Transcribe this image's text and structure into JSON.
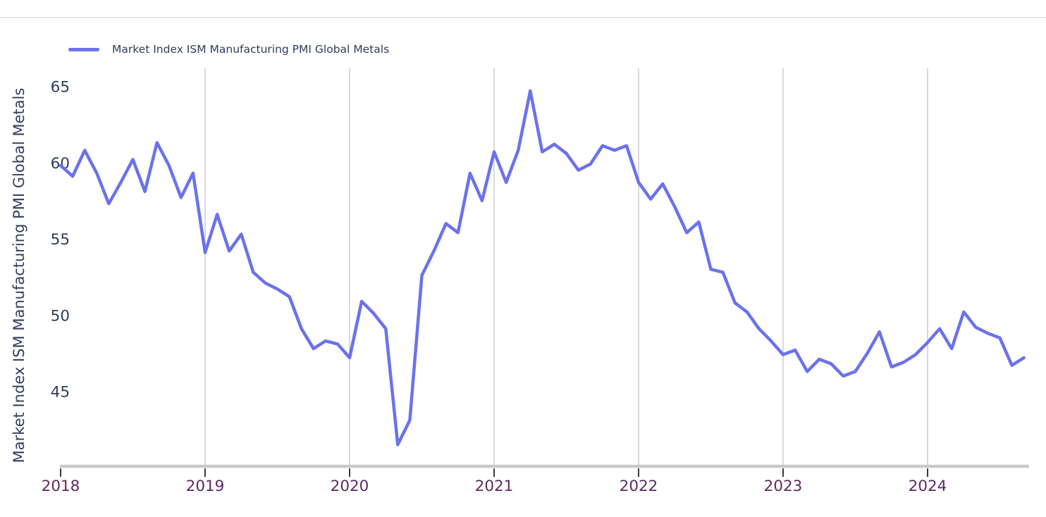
{
  "legend": {
    "label": "Market Index ISM Manufacturing PMI Global Metals",
    "swatch_color": "#6b72ec"
  },
  "chart_data": {
    "type": "line",
    "title": "",
    "xlabel": "",
    "ylabel": "Market Index ISM Manufacturing PMI Global Metals",
    "legend_position": "top-left",
    "grid": "vertical-year-gridlines-only",
    "x_ticks": [
      "2018",
      "2019",
      "2020",
      "2021",
      "2022",
      "2023",
      "2024"
    ],
    "y_ticks": [
      45,
      50,
      55,
      60,
      65
    ],
    "ylim": [
      40,
      66.5
    ],
    "series": [
      {
        "name": "Market Index ISM Manufacturing PMI Global Metals",
        "color": "#6b72ec",
        "x": [
          "2017-12",
          "2018-01",
          "2018-02",
          "2018-03",
          "2018-04",
          "2018-05",
          "2018-06",
          "2018-07",
          "2018-08",
          "2018-09",
          "2018-10",
          "2018-11",
          "2018-12",
          "2019-01",
          "2019-02",
          "2019-03",
          "2019-04",
          "2019-05",
          "2019-06",
          "2019-07",
          "2019-08",
          "2019-09",
          "2019-10",
          "2019-11",
          "2019-12",
          "2020-01",
          "2020-02",
          "2020-03",
          "2020-04",
          "2020-05",
          "2020-06",
          "2020-07",
          "2020-08",
          "2020-09",
          "2020-10",
          "2020-11",
          "2020-12",
          "2021-01",
          "2021-02",
          "2021-03",
          "2021-04",
          "2021-05",
          "2021-06",
          "2021-07",
          "2021-08",
          "2021-09",
          "2021-10",
          "2021-11",
          "2021-12",
          "2022-01",
          "2022-02",
          "2022-03",
          "2022-04",
          "2022-05",
          "2022-06",
          "2022-07",
          "2022-08",
          "2022-09",
          "2022-10",
          "2022-11",
          "2022-12",
          "2023-01",
          "2023-02",
          "2023-03",
          "2023-04",
          "2023-05",
          "2023-06",
          "2023-07",
          "2023-08",
          "2023-09",
          "2023-10",
          "2023-11",
          "2023-12",
          "2024-01",
          "2024-02",
          "2024-03",
          "2024-04",
          "2024-05",
          "2024-06",
          "2024-07",
          "2024-08"
        ],
        "values": [
          59.8,
          59.1,
          60.8,
          59.3,
          57.3,
          58.7,
          60.2,
          58.1,
          61.3,
          59.8,
          57.7,
          59.3,
          54.1,
          56.6,
          54.2,
          55.3,
          52.8,
          52.1,
          51.7,
          51.2,
          49.1,
          47.8,
          48.3,
          48.1,
          47.2,
          50.9,
          50.1,
          49.1,
          41.5,
          43.1,
          52.6,
          54.2,
          56.0,
          55.4,
          59.3,
          57.5,
          60.7,
          58.7,
          60.8,
          64.7,
          60.7,
          61.2,
          60.6,
          59.5,
          59.9,
          61.1,
          60.8,
          61.1,
          58.7,
          57.6,
          58.6,
          57.1,
          55.4,
          56.1,
          53.0,
          52.8,
          50.8,
          50.2,
          49.1,
          48.3,
          47.4,
          47.7,
          46.3,
          47.1,
          46.8,
          46.0,
          46.3,
          47.5,
          48.9,
          46.6,
          46.9,
          47.4,
          48.2,
          49.1,
          47.8,
          50.2,
          49.2,
          48.8,
          48.5,
          46.7,
          47.2
        ]
      }
    ]
  },
  "colors": {
    "line": "#6b72ec",
    "gridline": "#d9d9d9",
    "axis_line": "#c9c9c9",
    "tick_mark": "#3b3b3b",
    "x_tick_label": "#5d2a61",
    "y_tick_label": "#2e3d5e",
    "navy_text": "#2e3d5e",
    "divider": "#e4e4e4",
    "background": "#ffffff"
  }
}
